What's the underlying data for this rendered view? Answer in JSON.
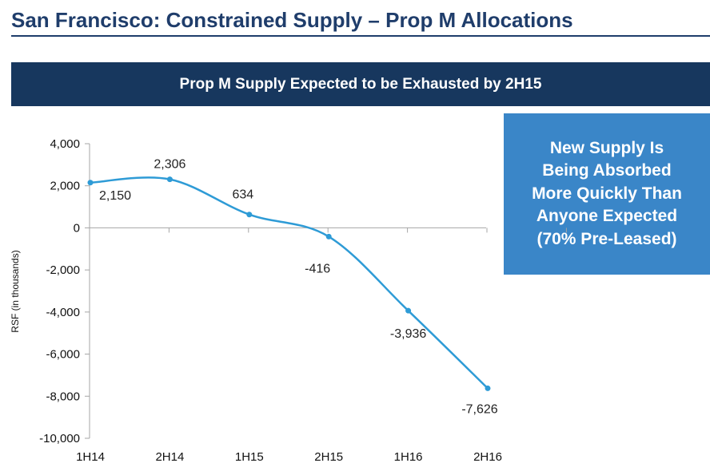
{
  "header": {
    "title": "San Francisco: Constrained Supply – Prop M Allocations"
  },
  "banner": {
    "text": "Prop M Supply Expected to be Exhausted by 2H15"
  },
  "callout": {
    "lines": [
      "New Supply Is",
      "Being Absorbed",
      "More Quickly Than",
      "Anyone Expected",
      "(70% Pre-Leased)"
    ]
  },
  "colors": {
    "title": "#1f3d6b",
    "banner_bg": "#17375e",
    "callout_bg": "#3a86c8",
    "series_line": "#2e9bd6"
  },
  "chart_data": {
    "type": "line",
    "title": "Prop M Supply Expected to be Exhausted by 2H15",
    "xlabel": "",
    "ylabel": "RSF (in thousands)",
    "categories": [
      "1H14",
      "2H14",
      "1H15",
      "2H15",
      "1H16",
      "2H16"
    ],
    "series": [
      {
        "name": "Prop M Supply",
        "values": [
          2150,
          2306,
          634,
          -416,
          -3936,
          -7626
        ],
        "labels": [
          "2,150",
          "2,306",
          "634",
          "-416",
          "-3,936",
          "-7,626"
        ]
      }
    ],
    "ylim": [
      -10000,
      4000
    ],
    "yticks": [
      4000,
      2000,
      0,
      -2000,
      -4000,
      -6000,
      -8000,
      -10000
    ],
    "ytick_labels": [
      "4,000",
      "2,000",
      "0",
      "-2,000",
      "-4,000",
      "-6,000",
      "-8,000",
      "-10,000"
    ],
    "grid": false,
    "smooth": true,
    "legend": "none"
  }
}
